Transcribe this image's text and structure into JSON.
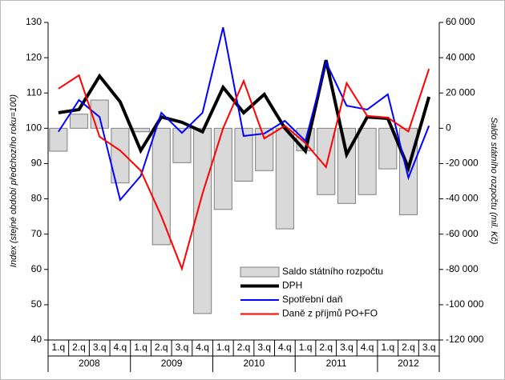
{
  "chart_data": {
    "type": "combo",
    "categories": [
      "1.q",
      "2.q",
      "3.q",
      "4.q",
      "1.q",
      "2.q",
      "3.q",
      "4.q",
      "1.q",
      "2.q",
      "3.q",
      "4.q",
      "1.q",
      "2.q",
      "3.q",
      "4.q",
      "1.q",
      "2.q",
      "3.q"
    ],
    "groups": [
      "2008",
      "2009",
      "2010",
      "2011",
      "2012"
    ],
    "y_label": "Index (stejné období předchozího roku=100)",
    "y2_label": "Saldo státního rozpočtu (mil. Kč)",
    "ylim": [
      40,
      130
    ],
    "yticks": [
      40,
      50,
      60,
      70,
      80,
      90,
      100,
      110,
      120,
      130
    ],
    "y2lim": [
      -120000,
      60000
    ],
    "y2ticks": [
      {
        "value": -120000,
        "label": "-120 000"
      },
      {
        "value": -100000,
        "label": "-100 000"
      },
      {
        "value": -80000,
        "label": "-80 000"
      },
      {
        "value": -60000,
        "label": "-60 000"
      },
      {
        "value": -40000,
        "label": "-40 000"
      },
      {
        "value": -20000,
        "label": "-20 000"
      },
      {
        "value": 0,
        "label": "0"
      },
      {
        "value": 20000,
        "label": "20 000"
      },
      {
        "value": 40000,
        "label": "40 000"
      },
      {
        "value": 60000,
        "label": "60 000"
      }
    ],
    "legend": "lower right",
    "series": [
      {
        "name": "Saldo státního rozpočtu",
        "kind": "bar",
        "axis": "y2",
        "color": "#d9d9d9",
        "values": [
          -13000,
          8000,
          16000,
          -31000,
          -2000,
          -66000,
          -19500,
          -105000,
          -46000,
          -30000,
          -24000,
          -57000,
          -12700,
          -37600,
          -42600,
          -37600,
          -23000,
          -49000,
          null
        ]
      },
      {
        "name": "DPH",
        "kind": "line",
        "color": "#000000",
        "width": 4,
        "values": [
          104.4,
          105.3,
          114.8,
          107.5,
          93.7,
          103.2,
          101.7,
          99,
          111.6,
          104.4,
          109.6,
          100,
          93.5,
          119.3,
          92.6,
          103.2,
          102.8,
          88.7,
          108.9
        ]
      },
      {
        "name": "Spotřební daň",
        "kind": "line",
        "color": "#0000ff",
        "width": 2,
        "values": [
          99,
          108,
          103.2,
          79.7,
          86.5,
          104.4,
          98.7,
          104.4,
          128.6,
          97.8,
          98.5,
          102.1,
          96.4,
          118.7,
          106.4,
          105.3,
          109.6,
          86,
          100.7
        ]
      },
      {
        "name": "Daně z příjmů PO+FO",
        "kind": "line",
        "color": "#ff0000",
        "width": 2,
        "values": [
          111.2,
          115,
          97.6,
          93.7,
          88,
          75.1,
          60.2,
          81.5,
          100,
          113.4,
          97.1,
          100.7,
          95.8,
          89,
          112.8,
          103.5,
          103,
          99.1,
          116.8
        ]
      }
    ]
  }
}
